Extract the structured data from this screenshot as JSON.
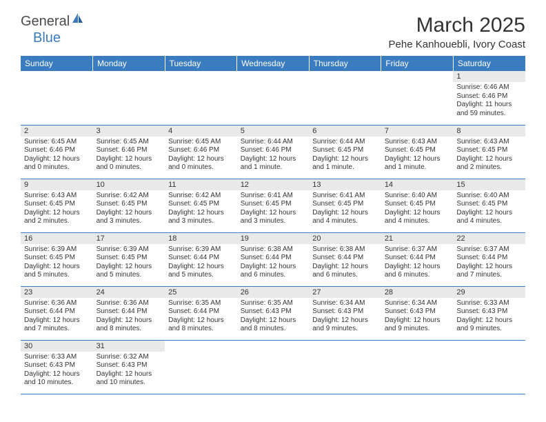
{
  "brand": {
    "part1": "General",
    "part2": "Blue"
  },
  "title": "March 2025",
  "location": "Pehe Kanhouebli, Ivory Coast",
  "colors": {
    "header_bg": "#3b7bbf",
    "header_text": "#ffffff",
    "daynum_bg": "#e9e9e9",
    "border": "#3b7bbf",
    "text": "#333333",
    "logo_blue": "#3b7bbf"
  },
  "typography": {
    "title_fontsize": 30,
    "location_fontsize": 15,
    "dayheader_fontsize": 12,
    "daynum_fontsize": 11,
    "info_fontsize": 10
  },
  "weekdays": [
    "Sunday",
    "Monday",
    "Tuesday",
    "Wednesday",
    "Thursday",
    "Friday",
    "Saturday"
  ],
  "weeks": [
    [
      null,
      null,
      null,
      null,
      null,
      null,
      {
        "n": "1",
        "sr": "Sunrise: 6:46 AM",
        "ss": "Sunset: 6:46 PM",
        "dl": "Daylight: 11 hours and 59 minutes."
      }
    ],
    [
      {
        "n": "2",
        "sr": "Sunrise: 6:45 AM",
        "ss": "Sunset: 6:46 PM",
        "dl": "Daylight: 12 hours and 0 minutes."
      },
      {
        "n": "3",
        "sr": "Sunrise: 6:45 AM",
        "ss": "Sunset: 6:46 PM",
        "dl": "Daylight: 12 hours and 0 minutes."
      },
      {
        "n": "4",
        "sr": "Sunrise: 6:45 AM",
        "ss": "Sunset: 6:46 PM",
        "dl": "Daylight: 12 hours and 0 minutes."
      },
      {
        "n": "5",
        "sr": "Sunrise: 6:44 AM",
        "ss": "Sunset: 6:46 PM",
        "dl": "Daylight: 12 hours and 1 minute."
      },
      {
        "n": "6",
        "sr": "Sunrise: 6:44 AM",
        "ss": "Sunset: 6:45 PM",
        "dl": "Daylight: 12 hours and 1 minute."
      },
      {
        "n": "7",
        "sr": "Sunrise: 6:43 AM",
        "ss": "Sunset: 6:45 PM",
        "dl": "Daylight: 12 hours and 1 minute."
      },
      {
        "n": "8",
        "sr": "Sunrise: 6:43 AM",
        "ss": "Sunset: 6:45 PM",
        "dl": "Daylight: 12 hours and 2 minutes."
      }
    ],
    [
      {
        "n": "9",
        "sr": "Sunrise: 6:43 AM",
        "ss": "Sunset: 6:45 PM",
        "dl": "Daylight: 12 hours and 2 minutes."
      },
      {
        "n": "10",
        "sr": "Sunrise: 6:42 AM",
        "ss": "Sunset: 6:45 PM",
        "dl": "Daylight: 12 hours and 3 minutes."
      },
      {
        "n": "11",
        "sr": "Sunrise: 6:42 AM",
        "ss": "Sunset: 6:45 PM",
        "dl": "Daylight: 12 hours and 3 minutes."
      },
      {
        "n": "12",
        "sr": "Sunrise: 6:41 AM",
        "ss": "Sunset: 6:45 PM",
        "dl": "Daylight: 12 hours and 3 minutes."
      },
      {
        "n": "13",
        "sr": "Sunrise: 6:41 AM",
        "ss": "Sunset: 6:45 PM",
        "dl": "Daylight: 12 hours and 4 minutes."
      },
      {
        "n": "14",
        "sr": "Sunrise: 6:40 AM",
        "ss": "Sunset: 6:45 PM",
        "dl": "Daylight: 12 hours and 4 minutes."
      },
      {
        "n": "15",
        "sr": "Sunrise: 6:40 AM",
        "ss": "Sunset: 6:45 PM",
        "dl": "Daylight: 12 hours and 4 minutes."
      }
    ],
    [
      {
        "n": "16",
        "sr": "Sunrise: 6:39 AM",
        "ss": "Sunset: 6:45 PM",
        "dl": "Daylight: 12 hours and 5 minutes."
      },
      {
        "n": "17",
        "sr": "Sunrise: 6:39 AM",
        "ss": "Sunset: 6:45 PM",
        "dl": "Daylight: 12 hours and 5 minutes."
      },
      {
        "n": "18",
        "sr": "Sunrise: 6:39 AM",
        "ss": "Sunset: 6:44 PM",
        "dl": "Daylight: 12 hours and 5 minutes."
      },
      {
        "n": "19",
        "sr": "Sunrise: 6:38 AM",
        "ss": "Sunset: 6:44 PM",
        "dl": "Daylight: 12 hours and 6 minutes."
      },
      {
        "n": "20",
        "sr": "Sunrise: 6:38 AM",
        "ss": "Sunset: 6:44 PM",
        "dl": "Daylight: 12 hours and 6 minutes."
      },
      {
        "n": "21",
        "sr": "Sunrise: 6:37 AM",
        "ss": "Sunset: 6:44 PM",
        "dl": "Daylight: 12 hours and 6 minutes."
      },
      {
        "n": "22",
        "sr": "Sunrise: 6:37 AM",
        "ss": "Sunset: 6:44 PM",
        "dl": "Daylight: 12 hours and 7 minutes."
      }
    ],
    [
      {
        "n": "23",
        "sr": "Sunrise: 6:36 AM",
        "ss": "Sunset: 6:44 PM",
        "dl": "Daylight: 12 hours and 7 minutes."
      },
      {
        "n": "24",
        "sr": "Sunrise: 6:36 AM",
        "ss": "Sunset: 6:44 PM",
        "dl": "Daylight: 12 hours and 8 minutes."
      },
      {
        "n": "25",
        "sr": "Sunrise: 6:35 AM",
        "ss": "Sunset: 6:44 PM",
        "dl": "Daylight: 12 hours and 8 minutes."
      },
      {
        "n": "26",
        "sr": "Sunrise: 6:35 AM",
        "ss": "Sunset: 6:43 PM",
        "dl": "Daylight: 12 hours and 8 minutes."
      },
      {
        "n": "27",
        "sr": "Sunrise: 6:34 AM",
        "ss": "Sunset: 6:43 PM",
        "dl": "Daylight: 12 hours and 9 minutes."
      },
      {
        "n": "28",
        "sr": "Sunrise: 6:34 AM",
        "ss": "Sunset: 6:43 PM",
        "dl": "Daylight: 12 hours and 9 minutes."
      },
      {
        "n": "29",
        "sr": "Sunrise: 6:33 AM",
        "ss": "Sunset: 6:43 PM",
        "dl": "Daylight: 12 hours and 9 minutes."
      }
    ],
    [
      {
        "n": "30",
        "sr": "Sunrise: 6:33 AM",
        "ss": "Sunset: 6:43 PM",
        "dl": "Daylight: 12 hours and 10 minutes."
      },
      {
        "n": "31",
        "sr": "Sunrise: 6:32 AM",
        "ss": "Sunset: 6:43 PM",
        "dl": "Daylight: 12 hours and 10 minutes."
      },
      null,
      null,
      null,
      null,
      null
    ]
  ]
}
